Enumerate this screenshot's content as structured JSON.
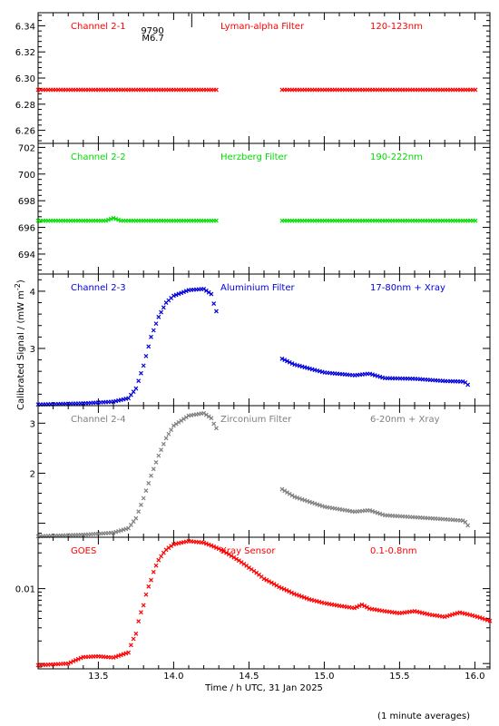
{
  "x_axis": {
    "label": "Time / h UTC, 31 Jan 2025",
    "range": [
      13.1,
      16.1
    ],
    "ticks": [
      "13.5",
      "14.0",
      "14.5",
      "15.0",
      "15.5",
      "16.0"
    ],
    "tick_values": [
      13.5,
      14.0,
      14.5,
      15.0,
      15.5,
      16.0
    ]
  },
  "y_label": "Calibrated Signal / (mW m",
  "y_label_exp": "-2",
  "y_label_end": ")",
  "footnote": "(1 minute averages)",
  "flare_marker": {
    "time": 14.12,
    "id": "9790",
    "class": "M6.7"
  },
  "chart_data": [
    {
      "type": "scatter",
      "channel": "Channel 2-1",
      "filter": "Lyman-alpha Filter",
      "band": "120-123nm",
      "color": "#ff0000",
      "ylim": [
        6.25,
        6.35
      ],
      "yticks": [
        "6.26",
        "6.28",
        "6.30",
        "6.32",
        "6.34"
      ],
      "ytick_values": [
        6.26,
        6.28,
        6.3,
        6.32,
        6.34
      ],
      "segments": [
        {
          "x_start": 13.1,
          "x_end": 14.28,
          "points": [
            [
              13.1,
              6.291
            ],
            [
              14.28,
              6.291
            ]
          ]
        },
        {
          "x_start": 14.72,
          "x_end": 16.0,
          "points": [
            [
              14.72,
              6.291
            ],
            [
              16.0,
              6.291
            ]
          ]
        }
      ]
    },
    {
      "type": "scatter",
      "channel": "Channel 2-2",
      "filter": "Herzberg Filter",
      "band": "190-222nm",
      "color": "#00dd00",
      "ylim": [
        692.5,
        702.3
      ],
      "yticks": [
        "694",
        "696",
        "698",
        "700",
        "702"
      ],
      "ytick_values": [
        694,
        696,
        698,
        700,
        702
      ],
      "segments": [
        {
          "x_start": 13.1,
          "x_end": 14.28,
          "points": [
            [
              13.1,
              696.5
            ],
            [
              13.55,
              696.5
            ],
            [
              13.6,
              696.7
            ],
            [
              13.65,
              696.5
            ],
            [
              14.28,
              696.5
            ]
          ]
        },
        {
          "x_start": 14.72,
          "x_end": 16.0,
          "points": [
            [
              14.72,
              696.5
            ],
            [
              16.0,
              696.5
            ]
          ]
        }
      ]
    },
    {
      "type": "scatter",
      "channel": "Channel 2-3",
      "filter": "Aluminium Filter",
      "band": "17-80nm + Xray",
      "color": "#0000dd",
      "ylim": [
        2.0,
        4.3
      ],
      "yticks": [
        "3",
        "4"
      ],
      "ytick_values": [
        3,
        4
      ],
      "segments": [
        {
          "x_start": 13.1,
          "x_end": 14.28,
          "points": [
            [
              13.1,
              2.02
            ],
            [
              13.4,
              2.04
            ],
            [
              13.6,
              2.07
            ],
            [
              13.7,
              2.13
            ],
            [
              13.75,
              2.3
            ],
            [
              13.8,
              2.7
            ],
            [
              13.85,
              3.2
            ],
            [
              13.9,
              3.55
            ],
            [
              13.95,
              3.8
            ],
            [
              14.0,
              3.92
            ],
            [
              14.1,
              4.02
            ],
            [
              14.2,
              4.04
            ],
            [
              14.25,
              3.95
            ],
            [
              14.28,
              3.65
            ]
          ]
        },
        {
          "x_start": 14.72,
          "x_end": 15.96,
          "points": [
            [
              14.72,
              2.82
            ],
            [
              14.8,
              2.72
            ],
            [
              15.0,
              2.58
            ],
            [
              15.2,
              2.53
            ],
            [
              15.3,
              2.56
            ],
            [
              15.4,
              2.48
            ],
            [
              15.6,
              2.47
            ],
            [
              15.7,
              2.45
            ],
            [
              15.8,
              2.43
            ],
            [
              15.93,
              2.42
            ],
            [
              15.96,
              2.35
            ]
          ]
        }
      ]
    },
    {
      "type": "scatter",
      "channel": "Channel 2-4",
      "filter": "Zirconium Filter",
      "band": "6-20nm + Xray",
      "color": "#7f7f7f",
      "ylim": [
        0.72,
        3.35
      ],
      "yticks": [
        "2",
        "3"
      ],
      "ytick_values": [
        2,
        3
      ],
      "segments": [
        {
          "x_start": 13.1,
          "x_end": 14.28,
          "points": [
            [
              13.1,
              0.74
            ],
            [
              13.4,
              0.77
            ],
            [
              13.6,
              0.81
            ],
            [
              13.7,
              0.9
            ],
            [
              13.75,
              1.1
            ],
            [
              13.8,
              1.5
            ],
            [
              13.85,
              1.95
            ],
            [
              13.9,
              2.35
            ],
            [
              13.95,
              2.7
            ],
            [
              14.0,
              2.95
            ],
            [
              14.1,
              3.15
            ],
            [
              14.2,
              3.2
            ],
            [
              14.25,
              3.1
            ],
            [
              14.28,
              2.9
            ]
          ]
        },
        {
          "x_start": 14.72,
          "x_end": 15.96,
          "points": [
            [
              14.72,
              1.68
            ],
            [
              14.8,
              1.53
            ],
            [
              15.0,
              1.33
            ],
            [
              15.2,
              1.23
            ],
            [
              15.3,
              1.26
            ],
            [
              15.4,
              1.16
            ],
            [
              15.6,
              1.12
            ],
            [
              15.7,
              1.1
            ],
            [
              15.8,
              1.08
            ],
            [
              15.93,
              1.05
            ],
            [
              15.96,
              0.93
            ]
          ]
        }
      ]
    },
    {
      "type": "scatter",
      "channel": "GOES",
      "filter": "Xray Sensor",
      "band": "0.1-0.8nm",
      "color": "#ff0000",
      "yscale": "log",
      "ylim": [
        0.00085,
        0.0485
      ],
      "yticks": [
        "0.01"
      ],
      "ytick_values": [
        0.01
      ],
      "segments": [
        {
          "x_start": 13.1,
          "x_end": 16.1,
          "points": [
            [
              13.1,
              0.00095
            ],
            [
              13.3,
              0.001
            ],
            [
              13.4,
              0.00122
            ],
            [
              13.5,
              0.00125
            ],
            [
              13.6,
              0.0012
            ],
            [
              13.7,
              0.0014
            ],
            [
              13.75,
              0.0025
            ],
            [
              13.8,
              0.006
            ],
            [
              13.85,
              0.013
            ],
            [
              13.9,
              0.024
            ],
            [
              13.95,
              0.033
            ],
            [
              14.0,
              0.039
            ],
            [
              14.1,
              0.043
            ],
            [
              14.2,
              0.041
            ],
            [
              14.3,
              0.034
            ],
            [
              14.4,
              0.026
            ],
            [
              14.5,
              0.019
            ],
            [
              14.6,
              0.0135
            ],
            [
              14.7,
              0.0105
            ],
            [
              14.8,
              0.0085
            ],
            [
              14.9,
              0.0072
            ],
            [
              15.0,
              0.0064
            ],
            [
              15.1,
              0.0059
            ],
            [
              15.2,
              0.0055
            ],
            [
              15.25,
              0.0061
            ],
            [
              15.3,
              0.0054
            ],
            [
              15.4,
              0.005
            ],
            [
              15.5,
              0.0047
            ],
            [
              15.6,
              0.005
            ],
            [
              15.7,
              0.0045
            ],
            [
              15.8,
              0.0042
            ],
            [
              15.9,
              0.0048
            ],
            [
              16.0,
              0.0043
            ],
            [
              16.1,
              0.0037
            ]
          ]
        }
      ]
    }
  ]
}
